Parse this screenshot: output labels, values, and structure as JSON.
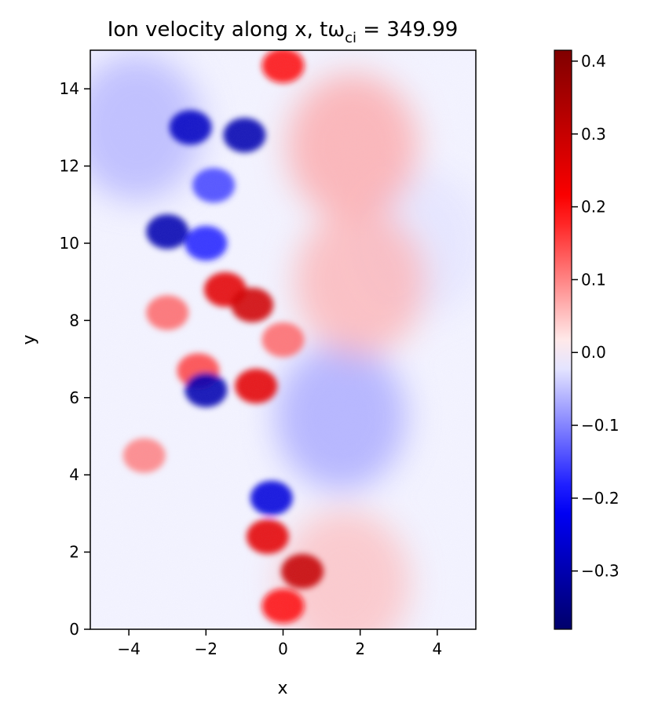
{
  "chart_data": {
    "type": "heatmap",
    "title": "Ion velocity along x, tω",
    "title_subscript": "ci",
    "title_suffix": " = 349.99",
    "xlabel": "x",
    "ylabel": "y",
    "xlim": [
      -5,
      5
    ],
    "ylim": [
      0,
      15
    ],
    "x_ticks": [
      -4,
      -2,
      0,
      2,
      4
    ],
    "x_tick_labels": [
      "−4",
      "−2",
      "0",
      "2",
      "4"
    ],
    "y_ticks": [
      0,
      2,
      4,
      6,
      8,
      10,
      12,
      14
    ],
    "y_tick_labels": [
      "0",
      "2",
      "4",
      "6",
      "8",
      "10",
      "12",
      "14"
    ],
    "colormap": "seismic",
    "colorbar": {
      "vmin": -0.38,
      "vmax": 0.415,
      "ticks": [
        0.4,
        0.3,
        0.2,
        0.1,
        0.0,
        -0.1,
        -0.2,
        -0.3
      ],
      "tick_labels": [
        "0.4",
        "0.3",
        "0.2",
        "0.1",
        "0.0",
        "−0.1",
        "−0.2",
        "−0.3"
      ]
    },
    "features": [
      {
        "x": -2.4,
        "y": 13.0,
        "value": -0.28
      },
      {
        "x": -1.0,
        "y": 12.8,
        "value": -0.3
      },
      {
        "x": 0.0,
        "y": 14.6,
        "value": 0.2
      },
      {
        "x": -1.8,
        "y": 11.5,
        "value": -0.15
      },
      {
        "x": -3.0,
        "y": 10.3,
        "value": -0.3
      },
      {
        "x": -2.0,
        "y": 10.0,
        "value": -0.18
      },
      {
        "x": -1.5,
        "y": 8.8,
        "value": 0.25
      },
      {
        "x": -0.8,
        "y": 8.4,
        "value": 0.28
      },
      {
        "x": -3.0,
        "y": 8.2,
        "value": 0.12
      },
      {
        "x": -2.2,
        "y": 6.7,
        "value": 0.15
      },
      {
        "x": -2.0,
        "y": 6.2,
        "value": -0.3
      },
      {
        "x": -0.7,
        "y": 6.3,
        "value": 0.25
      },
      {
        "x": 0.0,
        "y": 7.5,
        "value": 0.12
      },
      {
        "x": 1.5,
        "y": 5.5,
        "value": -0.07
      },
      {
        "x": -3.6,
        "y": 4.5,
        "value": 0.1
      },
      {
        "x": -0.3,
        "y": 3.4,
        "value": -0.25
      },
      {
        "x": -0.4,
        "y": 2.4,
        "value": 0.25
      },
      {
        "x": 0.5,
        "y": 1.5,
        "value": 0.3
      },
      {
        "x": 1.6,
        "y": 1.2,
        "value": 0.05
      },
      {
        "x": 0.0,
        "y": 0.6,
        "value": 0.2
      },
      {
        "x": -3.8,
        "y": 13.0,
        "value": -0.06
      },
      {
        "x": 3.5,
        "y": 10.0,
        "value": -0.02
      },
      {
        "x": 1.8,
        "y": 12.5,
        "value": 0.07
      },
      {
        "x": 2.0,
        "y": 9.0,
        "value": 0.06
      }
    ]
  }
}
